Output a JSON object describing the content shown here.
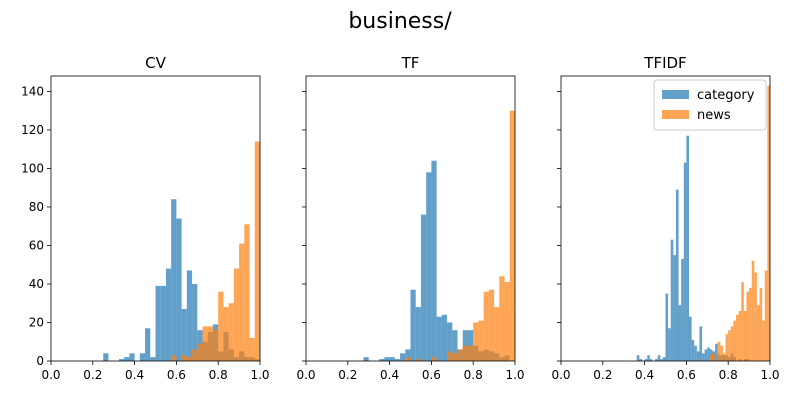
{
  "suptitle": "business/",
  "colors": {
    "category": "#1f77b4",
    "news": "#ff7f0e"
  },
  "chart_data": [
    {
      "type": "histogram",
      "title": "CV",
      "xlim": [
        0,
        1
      ],
      "ylim": [
        0,
        148
      ],
      "xticks": [
        "0.0",
        "0.2",
        "0.4",
        "0.6",
        "0.8",
        "1.0"
      ],
      "yticks": [
        "0",
        "20",
        "40",
        "60",
        "80",
        "100",
        "120",
        "140"
      ],
      "legend": null,
      "bin_width": 0.025,
      "series": [
        {
          "name": "category",
          "bins": [
            [
              0.25,
              4
            ],
            [
              0.325,
              1
            ],
            [
              0.35,
              2
            ],
            [
              0.375,
              4
            ],
            [
              0.425,
              4
            ],
            [
              0.45,
              17
            ],
            [
              0.475,
              2
            ],
            [
              0.5,
              39
            ],
            [
              0.525,
              39
            ],
            [
              0.55,
              48
            ],
            [
              0.575,
              84
            ],
            [
              0.6,
              74
            ],
            [
              0.625,
              27
            ],
            [
              0.65,
              47
            ],
            [
              0.675,
              40
            ],
            [
              0.7,
              16
            ],
            [
              0.725,
              10
            ],
            [
              0.75,
              15
            ],
            [
              0.775,
              19
            ],
            [
              0.8,
              5
            ],
            [
              0.825,
              15
            ],
            [
              0.85,
              6
            ],
            [
              0.875,
              2
            ],
            [
              0.9,
              5
            ],
            [
              0.925,
              2
            ],
            [
              0.95,
              2
            ],
            [
              0.975,
              1
            ]
          ]
        },
        {
          "name": "news",
          "bins": [
            [
              0.575,
              3
            ],
            [
              0.625,
              3
            ],
            [
              0.65,
              2
            ],
            [
              0.675,
              6
            ],
            [
              0.7,
              9
            ],
            [
              0.725,
              18
            ],
            [
              0.75,
              18
            ],
            [
              0.775,
              16
            ],
            [
              0.8,
              36
            ],
            [
              0.825,
              28
            ],
            [
              0.85,
              30
            ],
            [
              0.875,
              48
            ],
            [
              0.9,
              61
            ],
            [
              0.925,
              71
            ],
            [
              0.95,
              12
            ],
            [
              0.975,
              114
            ]
          ]
        }
      ]
    },
    {
      "type": "histogram",
      "title": "TF",
      "xlim": [
        0,
        1
      ],
      "ylim": [
        0,
        148
      ],
      "xticks": [
        "0.0",
        "0.2",
        "0.4",
        "0.6",
        "0.8",
        "1.0"
      ],
      "yticks": [
        "0",
        "20",
        "40",
        "60",
        "80",
        "100",
        "120",
        "140"
      ],
      "legend": null,
      "bin_width": 0.025,
      "series": [
        {
          "name": "category",
          "bins": [
            [
              0.275,
              2
            ],
            [
              0.35,
              1
            ],
            [
              0.375,
              2
            ],
            [
              0.4,
              2
            ],
            [
              0.425,
              1
            ],
            [
              0.45,
              4
            ],
            [
              0.475,
              6
            ],
            [
              0.5,
              37
            ],
            [
              0.525,
              28
            ],
            [
              0.55,
              76
            ],
            [
              0.575,
              98
            ],
            [
              0.6,
              104
            ],
            [
              0.625,
              23
            ],
            [
              0.65,
              24
            ],
            [
              0.675,
              20
            ],
            [
              0.7,
              16
            ],
            [
              0.725,
              6
            ],
            [
              0.75,
              16
            ],
            [
              0.775,
              16
            ],
            [
              0.8,
              8
            ],
            [
              0.825,
              5
            ],
            [
              0.85,
              6
            ],
            [
              0.875,
              5
            ],
            [
              0.9,
              4
            ],
            [
              0.925,
              2
            ],
            [
              0.95,
              3
            ]
          ]
        },
        {
          "name": "news",
          "bins": [
            [
              0.475,
              2
            ],
            [
              0.525,
              1
            ],
            [
              0.6,
              2
            ],
            [
              0.675,
              5
            ],
            [
              0.7,
              4
            ],
            [
              0.725,
              6
            ],
            [
              0.75,
              8
            ],
            [
              0.775,
              8
            ],
            [
              0.8,
              20
            ],
            [
              0.825,
              21
            ],
            [
              0.85,
              36
            ],
            [
              0.875,
              37
            ],
            [
              0.9,
              28
            ],
            [
              0.925,
              44
            ],
            [
              0.95,
              41
            ],
            [
              0.975,
              130
            ]
          ]
        }
      ]
    },
    {
      "type": "histogram",
      "title": "TFIDF",
      "xlim": [
        0,
        1
      ],
      "ylim": [
        0,
        148
      ],
      "xticks": [
        "0.0",
        "0.2",
        "0.4",
        "0.6",
        "0.8",
        "1.0"
      ],
      "yticks": [
        "0",
        "20",
        "40",
        "60",
        "80",
        "100",
        "120",
        "140"
      ],
      "legend": {
        "position": "top-right",
        "entries": [
          {
            "label": "category",
            "series": "category"
          },
          {
            "label": "news",
            "series": "news"
          }
        ]
      },
      "bin_width": 0.0125,
      "series": [
        {
          "name": "category",
          "bins": [
            [
              0.3625,
              3
            ],
            [
              0.375,
              1
            ],
            [
              0.4,
              1
            ],
            [
              0.4125,
              3
            ],
            [
              0.425,
              1
            ],
            [
              0.45,
              1
            ],
            [
              0.4625,
              3
            ],
            [
              0.475,
              1
            ],
            [
              0.4875,
              2
            ],
            [
              0.5,
              35
            ],
            [
              0.5125,
              17
            ],
            [
              0.525,
              63
            ],
            [
              0.5375,
              55
            ],
            [
              0.55,
              89
            ],
            [
              0.5625,
              29
            ],
            [
              0.575,
              53
            ],
            [
              0.5875,
              103
            ],
            [
              0.6,
              117
            ],
            [
              0.6125,
              23
            ],
            [
              0.625,
              11
            ],
            [
              0.6375,
              8
            ],
            [
              0.65,
              5
            ],
            [
              0.6625,
              18
            ],
            [
              0.675,
              4
            ],
            [
              0.6875,
              6
            ],
            [
              0.7,
              7
            ],
            [
              0.7125,
              6
            ],
            [
              0.725,
              5
            ],
            [
              0.7375,
              9
            ],
            [
              0.75,
              3
            ],
            [
              0.7625,
              3
            ],
            [
              0.775,
              3
            ],
            [
              0.7875,
              3
            ],
            [
              0.8,
              2
            ],
            [
              0.8125,
              4
            ],
            [
              0.825,
              2
            ],
            [
              0.85,
              1
            ],
            [
              0.875,
              1
            ],
            [
              0.8875,
              1
            ]
          ]
        },
        {
          "name": "news",
          "bins": [
            [
              0.6625,
              1
            ],
            [
              0.7125,
              3
            ],
            [
              0.725,
              4
            ],
            [
              0.75,
              10
            ],
            [
              0.7625,
              8
            ],
            [
              0.775,
              4
            ],
            [
              0.7875,
              14
            ],
            [
              0.8,
              16
            ],
            [
              0.8125,
              18
            ],
            [
              0.825,
              21
            ],
            [
              0.8375,
              24
            ],
            [
              0.85,
              26
            ],
            [
              0.8625,
              41
            ],
            [
              0.875,
              26
            ],
            [
              0.8875,
              36
            ],
            [
              0.9,
              38
            ],
            [
              0.9125,
              52
            ],
            [
              0.925,
              46
            ],
            [
              0.9375,
              29
            ],
            [
              0.95,
              38
            ],
            [
              0.9625,
              21
            ],
            [
              0.975,
              47
            ],
            [
              0.9875,
              143
            ]
          ]
        }
      ]
    }
  ]
}
